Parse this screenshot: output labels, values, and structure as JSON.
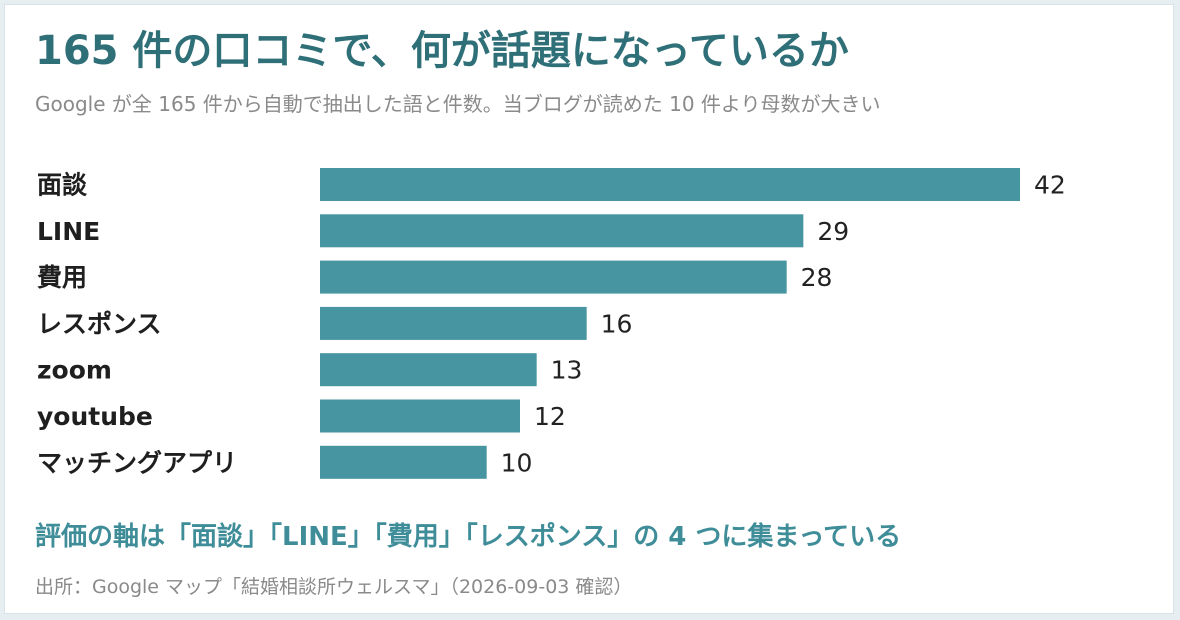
{
  "title": "165 件の口コミで、何が話題になっているか",
  "subtitle": "Google が全 165 件から自動で抽出した語と件数。当ブログが読めた 10 件より母数が大きい",
  "takeaway": "評価の軸は「面談」「LINE」「費用」「レスポンス」の 4 つに集まっている",
  "source": "出所：Google マップ「結婚相談所ウェルスマ」（2026-09-03 確認）",
  "colors": {
    "bar": "#4795a1",
    "title": "#2f6f78",
    "takeaway": "#3e8d98",
    "muted": "#8a8a8a"
  },
  "chart_data": {
    "type": "bar",
    "orientation": "horizontal",
    "categories": [
      "面談",
      "LINE",
      "費用",
      "レスポンス",
      "zoom",
      "youtube",
      "マッチングアプリ"
    ],
    "values": [
      42,
      29,
      28,
      16,
      13,
      12,
      10
    ],
    "data_labels": [
      "42",
      "29",
      "28",
      "16",
      "13",
      "12",
      "10"
    ],
    "xlim": [
      0,
      42
    ],
    "grid": false,
    "legend": "none"
  }
}
